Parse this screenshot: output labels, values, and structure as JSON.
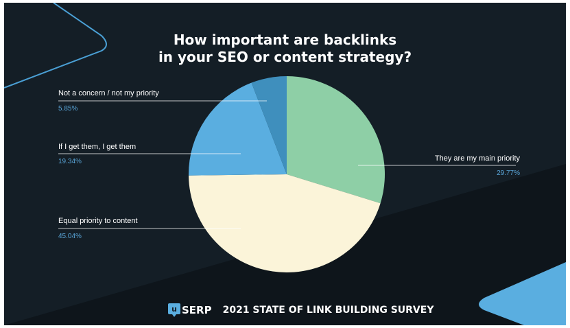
{
  "chart_data": {
    "type": "pie",
    "title": "How important are backlinks in your SEO or content strategy?",
    "title_lines": [
      "How important are backlinks",
      "in your SEO or content strategy?"
    ],
    "slices": [
      {
        "label": "They are my main priority",
        "value": 29.77,
        "value_label": "29.77%",
        "color": "#8ecfa6"
      },
      {
        "label": "Equal priority to content",
        "value": 45.04,
        "value_label": "45.04%",
        "color": "#fbf4d9"
      },
      {
        "label": "If I get them, I get them",
        "value": 19.34,
        "value_label": "19.34%",
        "color": "#5aaee0"
      },
      {
        "label": "Not a concern / not my priority",
        "value": 5.85,
        "value_label": "5.85%",
        "color": "#3f8fbd"
      }
    ]
  },
  "footer": {
    "brand_mark": "u",
    "brand_text": "SERP",
    "survey_title": "2021 STATE OF LINK BUILDING SURVEY"
  },
  "colors": {
    "background": "#141e26",
    "background_dark_band": "#0e151b",
    "accent_blue": "#5aa6d9",
    "text": "#ffffff"
  }
}
